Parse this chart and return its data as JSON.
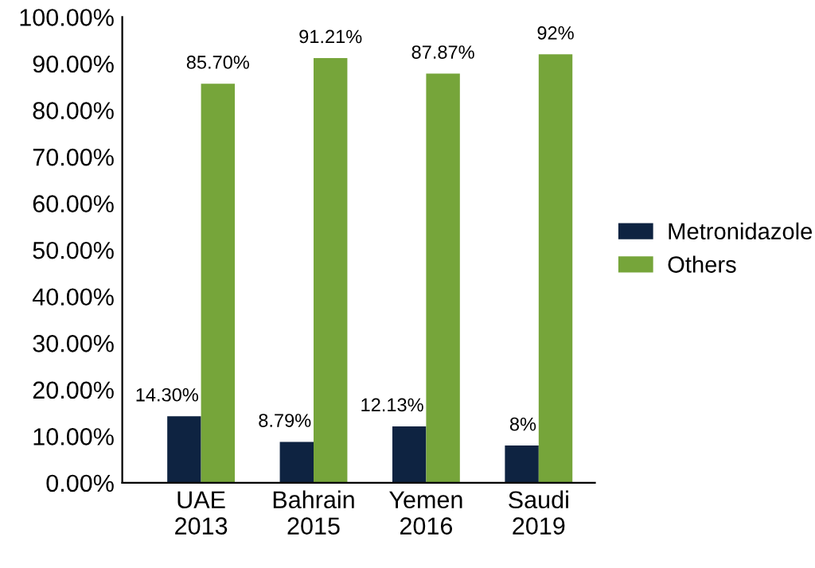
{
  "chart_data": {
    "type": "bar",
    "categories": [
      "UAE\n2013",
      "Bahrain\n2015",
      "Yemen\n2016",
      "Saudi\n2019"
    ],
    "series": [
      {
        "name": "Metronidazole",
        "color": "#0e2341",
        "values": [
          14.3,
          8.79,
          12.13,
          8
        ],
        "value_labels": [
          "14.30%",
          "8.79%",
          "12.13%",
          "8%"
        ]
      },
      {
        "name": "Others",
        "color": "#76a53a",
        "values": [
          85.7,
          91.21,
          87.87,
          92
        ],
        "value_labels": [
          "85.70%",
          "91.21%",
          "87.87%",
          "92%"
        ]
      }
    ],
    "ylim": [
      0,
      100
    ],
    "yticks": [
      {
        "value": 0,
        "label": "0.00%"
      },
      {
        "value": 10,
        "label": "10.00%"
      },
      {
        "value": 20,
        "label": "20.00%"
      },
      {
        "value": 30,
        "label": "30.00%"
      },
      {
        "value": 40,
        "label": "40.00%"
      },
      {
        "value": 50,
        "label": "50.00%"
      },
      {
        "value": 60,
        "label": "60.00%"
      },
      {
        "value": 70,
        "label": "70.00%"
      },
      {
        "value": 80,
        "label": "80.00%"
      },
      {
        "value": 90,
        "label": "90.00%"
      },
      {
        "value": 100,
        "label": "100.00%"
      }
    ],
    "grid": false,
    "legend": "right"
  }
}
